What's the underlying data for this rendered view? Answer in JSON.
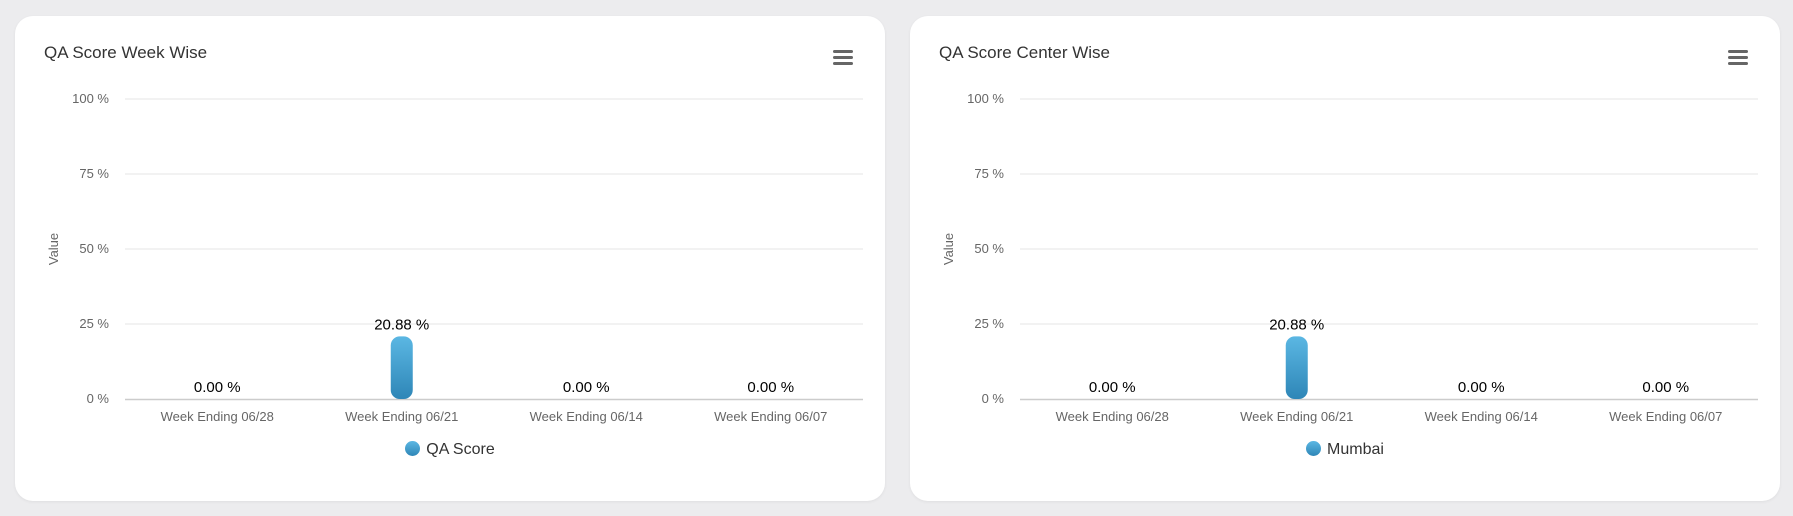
{
  "colors": {
    "bar_top": "#5bb7e3",
    "bar_bottom": "#2e86b7",
    "grid": "#e6e6e6",
    "axis": "#cccccc",
    "tick_text": "#666666",
    "label_text": "#000000"
  },
  "panels": [
    {
      "title": "QA Score Week Wise",
      "menu_icon": "hamburger-menu-icon",
      "legend_label": "QA Score",
      "chart_data": {
        "type": "bar",
        "title": "QA Score Week Wise",
        "xlabel": "",
        "ylabel": "Value",
        "ylim": [
          0,
          100
        ],
        "yticks": [
          0,
          25,
          50,
          75,
          100
        ],
        "ytick_labels": [
          "0 %",
          "25 %",
          "50 %",
          "75 %",
          "100 %"
        ],
        "categories": [
          "Week Ending 06/28",
          "Week Ending 06/21",
          "Week Ending 06/14",
          "Week Ending 06/07"
        ],
        "series": [
          {
            "name": "QA Score",
            "values": [
              0,
              20.88,
              0,
              0
            ],
            "labels": [
              "0.00 %",
              "20.88 %",
              "0.00 %",
              "0.00 %"
            ]
          }
        ],
        "grid": true,
        "legend_position": "bottom-center"
      }
    },
    {
      "title": "QA Score Center Wise",
      "menu_icon": "hamburger-menu-icon",
      "legend_label": "Mumbai",
      "chart_data": {
        "type": "bar",
        "title": "QA Score Center Wise",
        "xlabel": "",
        "ylabel": "Value",
        "ylim": [
          0,
          100
        ],
        "yticks": [
          0,
          25,
          50,
          75,
          100
        ],
        "ytick_labels": [
          "0 %",
          "25 %",
          "50 %",
          "75 %",
          "100 %"
        ],
        "categories": [
          "Week Ending 06/28",
          "Week Ending 06/21",
          "Week Ending 06/14",
          "Week Ending 06/07"
        ],
        "series": [
          {
            "name": "Mumbai",
            "values": [
              0,
              20.88,
              0,
              0
            ],
            "labels": [
              "0.00 %",
              "20.88 %",
              "0.00 %",
              "0.00 %"
            ]
          }
        ],
        "grid": true,
        "legend_position": "bottom-center"
      }
    }
  ]
}
